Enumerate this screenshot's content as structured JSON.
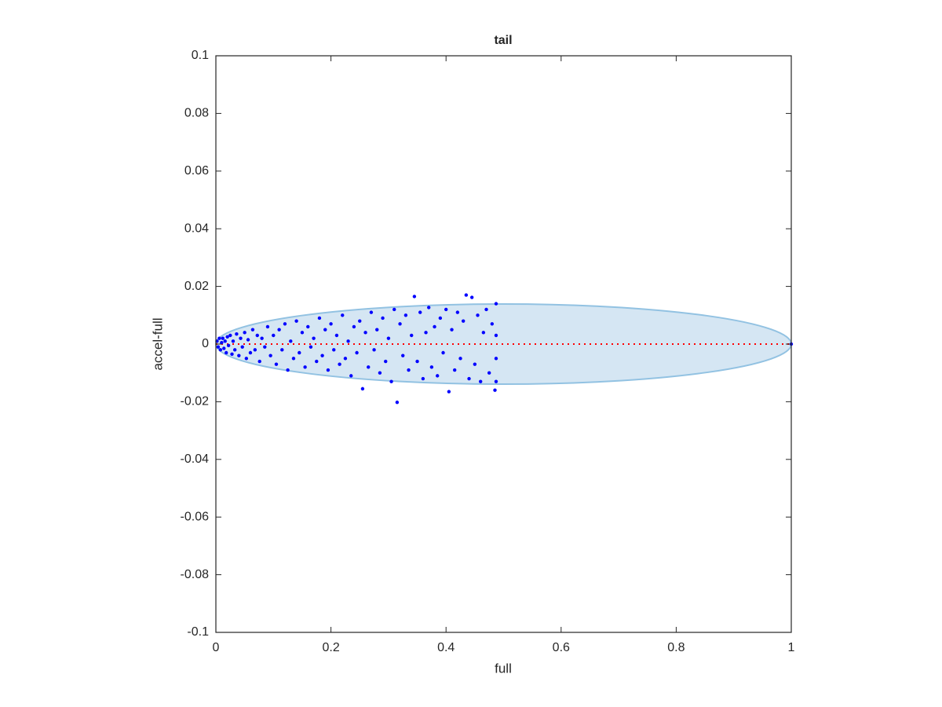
{
  "chart_data": {
    "type": "scatter",
    "title": "tail",
    "x_label": "full",
    "y_label": "accel-full",
    "xlim": [
      0,
      1
    ],
    "xticks": [
      0,
      0.2,
      0.4,
      0.6,
      0.8,
      1
    ],
    "ylim": [
      -0.1,
      0.1
    ],
    "yticks": [
      -0.1,
      -0.08,
      -0.06,
      -0.04,
      -0.02,
      0,
      0.02,
      0.04,
      0.06,
      0.08,
      0.1
    ],
    "color": "#0000ff",
    "ellipse": {
      "center": [
        0.5,
        0
      ],
      "radii": [
        0.5,
        0.0139
      ],
      "fill": "#d5e6f3",
      "stroke": "#92c2e2"
    },
    "reference_line": {
      "x": [
        0,
        1
      ],
      "y": [
        0,
        0
      ],
      "color": "#ff0000"
    },
    "x": [
      0.002,
      0.004,
      0.006,
      0.008,
      0.01,
      0.012,
      0.014,
      0.016,
      0.018,
      0.02,
      0.022,
      0.025,
      0.028,
      0.03,
      0.033,
      0.036,
      0.04,
      0.043,
      0.046,
      0.05,
      0.053,
      0.056,
      0.06,
      0.064,
      0.068,
      0.072,
      0.076,
      0.08,
      0.085,
      0.09,
      0.095,
      0.1,
      0.105,
      0.11,
      0.115,
      0.12,
      0.125,
      0.13,
      0.135,
      0.14,
      0.145,
      0.15,
      0.155,
      0.16,
      0.165,
      0.17,
      0.175,
      0.18,
      0.185,
      0.19,
      0.195,
      0.2,
      0.205,
      0.21,
      0.215,
      0.22,
      0.225,
      0.23,
      0.235,
      0.24,
      0.245,
      0.25,
      0.255,
      0.26,
      0.265,
      0.27,
      0.275,
      0.28,
      0.285,
      0.29,
      0.295,
      0.3,
      0.305,
      0.31,
      0.315,
      0.32,
      0.325,
      0.33,
      0.335,
      0.34,
      0.345,
      0.35,
      0.355,
      0.36,
      0.365,
      0.37,
      0.375,
      0.38,
      0.385,
      0.39,
      0.395,
      0.4,
      0.405,
      0.41,
      0.415,
      0.42,
      0.425,
      0.43,
      0.435,
      0.44,
      0.445,
      0.45,
      0.455,
      0.46,
      0.465,
      0.47,
      0.475,
      0.48,
      0.485,
      0.487,
      0.487,
      0.487,
      0.487,
      1
    ],
    "values": [
      0.001,
      -0.001,
      0.002,
      -0.002,
      0.0005,
      0.002,
      -0.0015,
      0.001,
      -0.003,
      0.0025,
      -0.0005,
      0.003,
      -0.0035,
      0.001,
      -0.002,
      0.0035,
      -0.004,
      0.002,
      -0.001,
      0.004,
      -0.005,
      0.0015,
      -0.003,
      0.005,
      -0.002,
      0.003,
      -0.006,
      0.002,
      -0.001,
      0.006,
      -0.004,
      0.003,
      -0.007,
      0.005,
      -0.002,
      0.007,
      -0.009,
      0.001,
      -0.005,
      0.008,
      -0.003,
      0.004,
      -0.008,
      0.006,
      -0.001,
      0.002,
      -0.006,
      0.009,
      -0.004,
      0.005,
      -0.009,
      0.007,
      -0.002,
      0.003,
      -0.007,
      0.01,
      -0.005,
      0.001,
      -0.011,
      0.006,
      -0.003,
      0.008,
      -0.0155,
      0.004,
      -0.008,
      0.011,
      -0.002,
      0.005,
      -0.01,
      0.009,
      -0.006,
      0.002,
      -0.013,
      0.012,
      -0.0202,
      0.007,
      -0.004,
      0.01,
      -0.009,
      0.003,
      0.0165,
      -0.006,
      0.011,
      -0.012,
      0.004,
      0.0127,
      -0.008,
      0.006,
      -0.011,
      0.009,
      -0.003,
      0.012,
      -0.0165,
      0.005,
      -0.009,
      0.011,
      -0.005,
      0.008,
      0.017,
      -0.012,
      0.0162,
      -0.007,
      0.01,
      -0.013,
      0.004,
      0.012,
      -0.01,
      0.007,
      -0.016,
      0.014,
      -0.013,
      0.003,
      -0.005,
      0
    ]
  }
}
